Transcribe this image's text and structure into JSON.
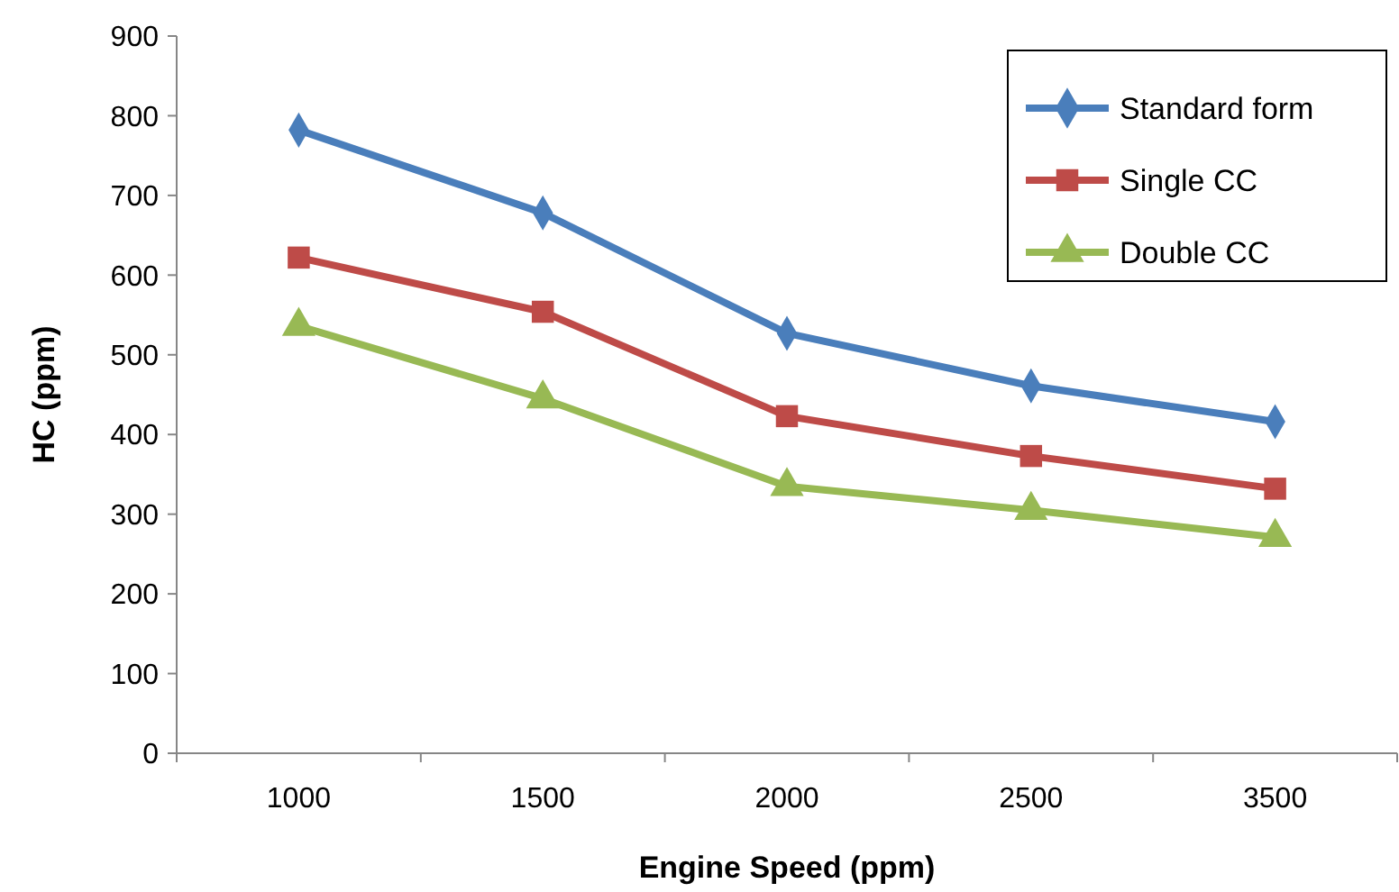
{
  "chart_data": {
    "type": "line",
    "xlabel": "Engine Speed (ppm)",
    "ylabel": "HC (ppm)",
    "categories": [
      "1000",
      "1500",
      "2000",
      "2500",
      "3500"
    ],
    "series": [
      {
        "name": "Standard form",
        "color": "#4a7ebb",
        "marker": "diamond",
        "values": [
          782,
          678,
          527,
          461,
          416
        ]
      },
      {
        "name": "Single CC",
        "color": "#be4b48",
        "marker": "square",
        "values": [
          622,
          554,
          423,
          373,
          332
        ]
      },
      {
        "name": "Double CC",
        "color": "#98b954",
        "marker": "triangle",
        "values": [
          536,
          445,
          335,
          305,
          271
        ]
      }
    ],
    "ylim": [
      0,
      900
    ],
    "yticks": [
      0,
      100,
      200,
      300,
      400,
      500,
      600,
      700,
      800,
      900
    ],
    "grid": false,
    "legend": "top right",
    "line_style": "solid"
  }
}
